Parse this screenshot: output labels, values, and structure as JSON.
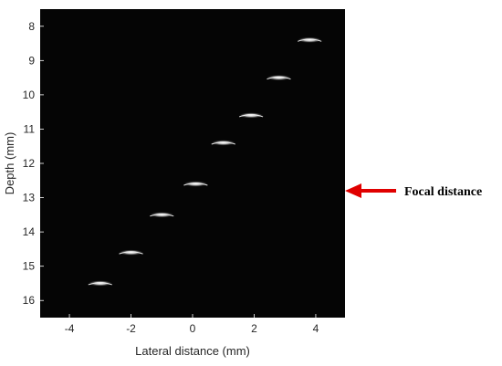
{
  "chart_data": {
    "type": "scatter",
    "title": "",
    "xlabel": "Lateral distance (mm)",
    "ylabel": "Depth (mm)",
    "xlim": [
      -4.95,
      4.95
    ],
    "ylim": [
      7.5,
      16.5
    ],
    "y_reversed": true,
    "xticks": [
      -4,
      -2,
      0,
      2,
      4
    ],
    "yticks": [
      8,
      9,
      10,
      11,
      12,
      13,
      14,
      15,
      16
    ],
    "grid": false,
    "background_color": "#050505",
    "point_color": "#ffffff",
    "x": [
      -3.0,
      -2.0,
      -1.0,
      0.1,
      1.0,
      1.9,
      2.8,
      3.8
    ],
    "y": [
      15.5,
      14.6,
      13.5,
      12.6,
      11.4,
      10.6,
      9.5,
      8.4
    ],
    "annotations": [
      {
        "text": "Focal distance",
        "y": 12.8,
        "arrow_color": "#e00000"
      }
    ]
  }
}
